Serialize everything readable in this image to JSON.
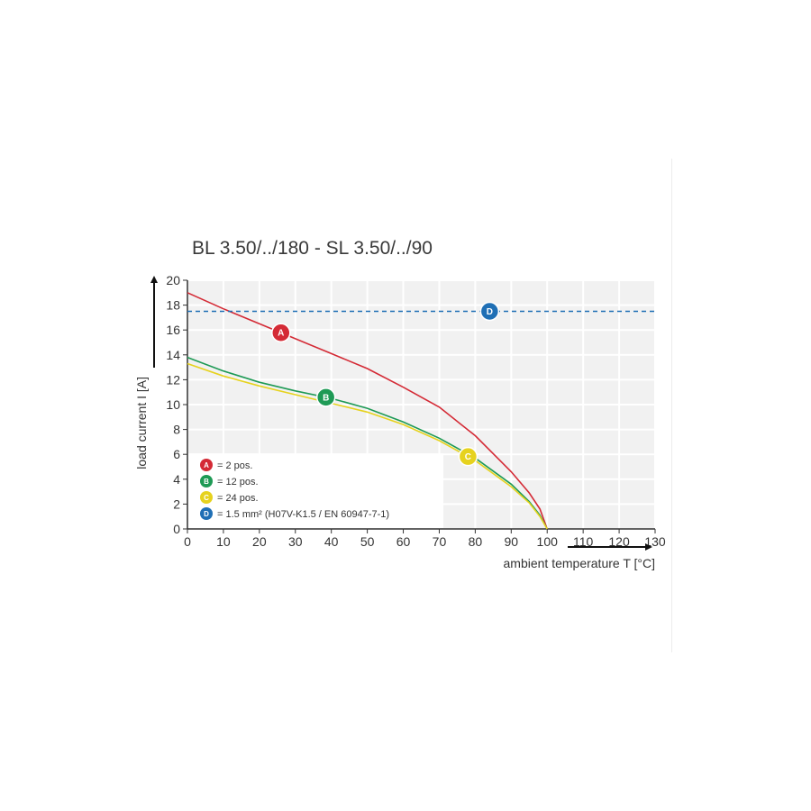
{
  "chart_data": {
    "type": "line",
    "title": "BL 3.50/../180 - SL 3.50/../90",
    "xlabel": "ambient temperature T [°C]",
    "ylabel": "load current I [A]",
    "xlim": [
      0,
      130
    ],
    "ylim": [
      0,
      20
    ],
    "x_ticks": [
      0,
      10,
      20,
      30,
      40,
      50,
      60,
      70,
      80,
      90,
      100,
      110,
      120,
      130
    ],
    "y_ticks": [
      0,
      2,
      4,
      6,
      8,
      10,
      12,
      14,
      16,
      18,
      20
    ],
    "grid": true,
    "legend_position": "bottom-left",
    "series": [
      {
        "marker": "A",
        "legend": "= 2 pos.",
        "color": "#d42a35",
        "style": "solid",
        "marker_at": 26,
        "points": [
          [
            0,
            19.0
          ],
          [
            10,
            17.7
          ],
          [
            20,
            16.5
          ],
          [
            30,
            15.3
          ],
          [
            40,
            14.1
          ],
          [
            50,
            12.9
          ],
          [
            60,
            11.4
          ],
          [
            70,
            9.8
          ],
          [
            80,
            7.5
          ],
          [
            90,
            4.6
          ],
          [
            95,
            2.9
          ],
          [
            98,
            1.6
          ],
          [
            100,
            0
          ]
        ]
      },
      {
        "marker": "B",
        "legend": "= 12 pos.",
        "color": "#1e9a55",
        "style": "solid",
        "marker_at": 38.5,
        "points": [
          [
            0,
            13.8
          ],
          [
            10,
            12.7
          ],
          [
            20,
            11.8
          ],
          [
            30,
            11.1
          ],
          [
            40,
            10.5
          ],
          [
            50,
            9.7
          ],
          [
            60,
            8.6
          ],
          [
            70,
            7.3
          ],
          [
            80,
            5.7
          ],
          [
            90,
            3.6
          ],
          [
            95,
            2.2
          ],
          [
            98,
            1.1
          ],
          [
            100,
            0
          ]
        ]
      },
      {
        "marker": "C",
        "legend": "= 24 pos.",
        "color": "#e6d21e",
        "style": "solid",
        "marker_at": 78,
        "points": [
          [
            0,
            13.3
          ],
          [
            10,
            12.3
          ],
          [
            20,
            11.5
          ],
          [
            30,
            10.8
          ],
          [
            40,
            10.1
          ],
          [
            50,
            9.4
          ],
          [
            60,
            8.4
          ],
          [
            70,
            7.1
          ],
          [
            80,
            5.5
          ],
          [
            90,
            3.4
          ],
          [
            95,
            2.1
          ],
          [
            98,
            1.0
          ],
          [
            100,
            0
          ]
        ]
      },
      {
        "marker": "D",
        "legend": "= 1.5 mm² (H07V-K1.5 / EN 60947-7-1)",
        "color": "#1f6fb5",
        "style": "dashed",
        "marker_at": 84,
        "points": [
          [
            0,
            17.5
          ],
          [
            130,
            17.5
          ]
        ]
      }
    ]
  }
}
